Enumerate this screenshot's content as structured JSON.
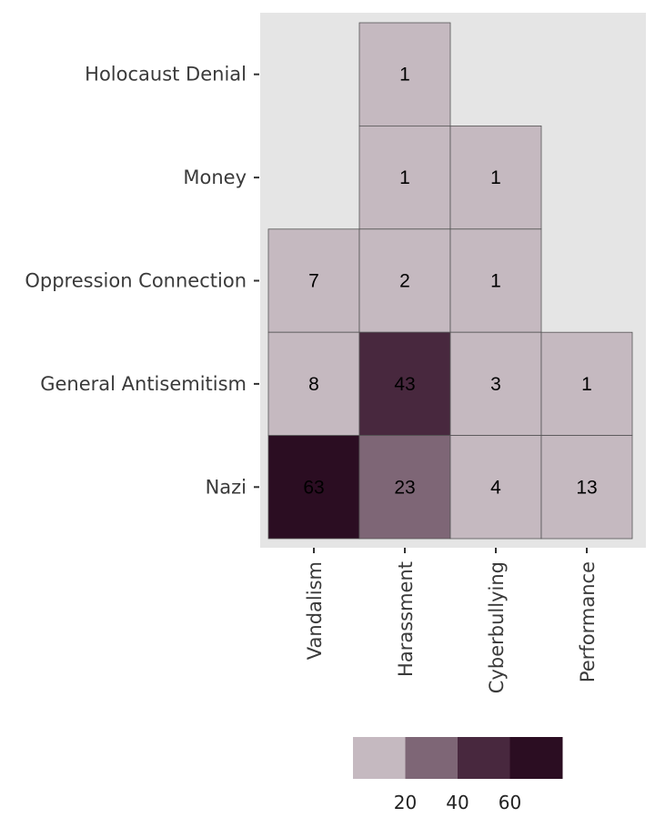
{
  "chart_data": {
    "type": "heatmap",
    "title": "",
    "xlabel": "",
    "ylabel": "",
    "x_categories": [
      "Vandalism",
      "Harassment",
      "Cyberbullying",
      "Performance"
    ],
    "y_categories": [
      "Holocaust Denial",
      "Money",
      "Oppression Connection",
      "General Antisemitism",
      "Nazi"
    ],
    "cells": [
      {
        "x": "Harassment",
        "y": "Holocaust Denial",
        "value": 1
      },
      {
        "x": "Harassment",
        "y": "Money",
        "value": 1
      },
      {
        "x": "Cyberbullying",
        "y": "Money",
        "value": 1
      },
      {
        "x": "Vandalism",
        "y": "Oppression Connection",
        "value": 7
      },
      {
        "x": "Harassment",
        "y": "Oppression Connection",
        "value": 2
      },
      {
        "x": "Cyberbullying",
        "y": "Oppression Connection",
        "value": 1
      },
      {
        "x": "Vandalism",
        "y": "General Antisemitism",
        "value": 8
      },
      {
        "x": "Harassment",
        "y": "General Antisemitism",
        "value": 43
      },
      {
        "x": "Cyberbullying",
        "y": "General Antisemitism",
        "value": 3
      },
      {
        "x": "Performance",
        "y": "General Antisemitism",
        "value": 1
      },
      {
        "x": "Vandalism",
        "y": "Nazi",
        "value": 63
      },
      {
        "x": "Harassment",
        "y": "Nazi",
        "value": 23
      },
      {
        "x": "Cyberbullying",
        "y": "Nazi",
        "value": 4
      },
      {
        "x": "Performance",
        "y": "Nazi",
        "value": 13
      }
    ],
    "legend": {
      "placement": "bottom",
      "colors": [
        "#c5b9c0",
        "#7e6676",
        "#48283e",
        "#2b0d22"
      ],
      "breaks": [
        20,
        40,
        60
      ],
      "tick_labels": [
        "20",
        "40",
        "60"
      ]
    },
    "panel_background": "#e5e5e5",
    "cell_border": "#555555"
  }
}
